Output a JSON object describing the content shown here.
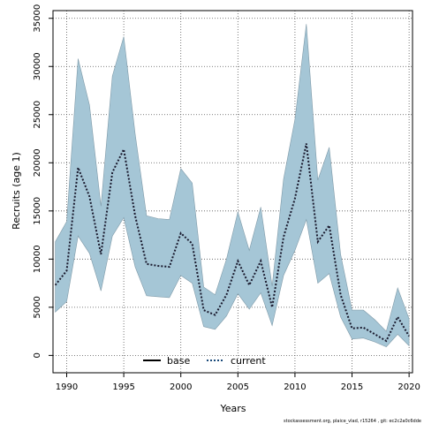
{
  "chart_data": {
    "type": "area",
    "xlabel": "Years",
    "ylabel": "Recruits (age 1)",
    "xlim": [
      1988.8,
      2020.3
    ],
    "ylim": [
      -1800,
      35800
    ],
    "x_ticks": [
      "1990",
      "1995",
      "2000",
      "2005",
      "2010",
      "2015",
      "2020"
    ],
    "x_tick_values": [
      1990,
      1995,
      2000,
      2005,
      2010,
      2015,
      2020
    ],
    "y_ticks": [
      "0",
      "5000",
      "10000",
      "15000",
      "20000",
      "25000",
      "30000",
      "35000"
    ],
    "y_tick_values": [
      0,
      5000,
      10000,
      15000,
      20000,
      25000,
      30000,
      35000
    ],
    "grid": true,
    "legend_position": "bottom",
    "x": [
      1989,
      1990,
      1991,
      1992,
      1993,
      1994,
      1995,
      1996,
      1997,
      1998,
      1999,
      2000,
      2001,
      2002,
      2003,
      2004,
      2005,
      2006,
      2007,
      2008,
      2009,
      2010,
      2011,
      2012,
      2013,
      2014,
      2015,
      2016,
      2017,
      2018,
      2019,
      2020
    ],
    "series": [
      {
        "name": "current",
        "style": "dotted",
        "color": "#1a1a2e",
        "values": [
          7300,
          8800,
          19500,
          16500,
          10500,
          19000,
          21400,
          14500,
          9500,
          9300,
          9200,
          12700,
          11600,
          4700,
          4200,
          6300,
          9800,
          7300,
          9800,
          5000,
          12300,
          16300,
          22000,
          11800,
          13500,
          6300,
          2800,
          2900,
          2200,
          1500,
          4000,
          2000
        ]
      }
    ],
    "band": {
      "upper": [
        11800,
        13900,
        30800,
        26000,
        15500,
        29000,
        33100,
        23000,
        14500,
        14200,
        14100,
        19400,
        17900,
        7100,
        6300,
        10000,
        14900,
        10900,
        15400,
        7200,
        18300,
        24500,
        34400,
        18200,
        21600,
        10500,
        4700,
        4700,
        3700,
        2500,
        7000,
        3800
      ],
      "lower": [
        4500,
        5600,
        12400,
        10600,
        6700,
        12400,
        14300,
        9200,
        6200,
        6100,
        6000,
        8300,
        7500,
        3000,
        2700,
        4100,
        6400,
        4800,
        6500,
        3100,
        8300,
        10900,
        14100,
        7500,
        8500,
        4000,
        1700,
        1800,
        1400,
        900,
        2200,
        1000
      ],
      "fill_color": "#a5c6d6",
      "edge_color": "#7f9aa8"
    },
    "legend": [
      {
        "label": "base",
        "style": "solid"
      },
      {
        "label": "current",
        "style": "dotted",
        "color": "#1a4a7a"
      }
    ]
  },
  "footer": {
    "text": "stockassessment.org, plaice_vlad, r15264 , git: ec2c2a0c6dde"
  }
}
